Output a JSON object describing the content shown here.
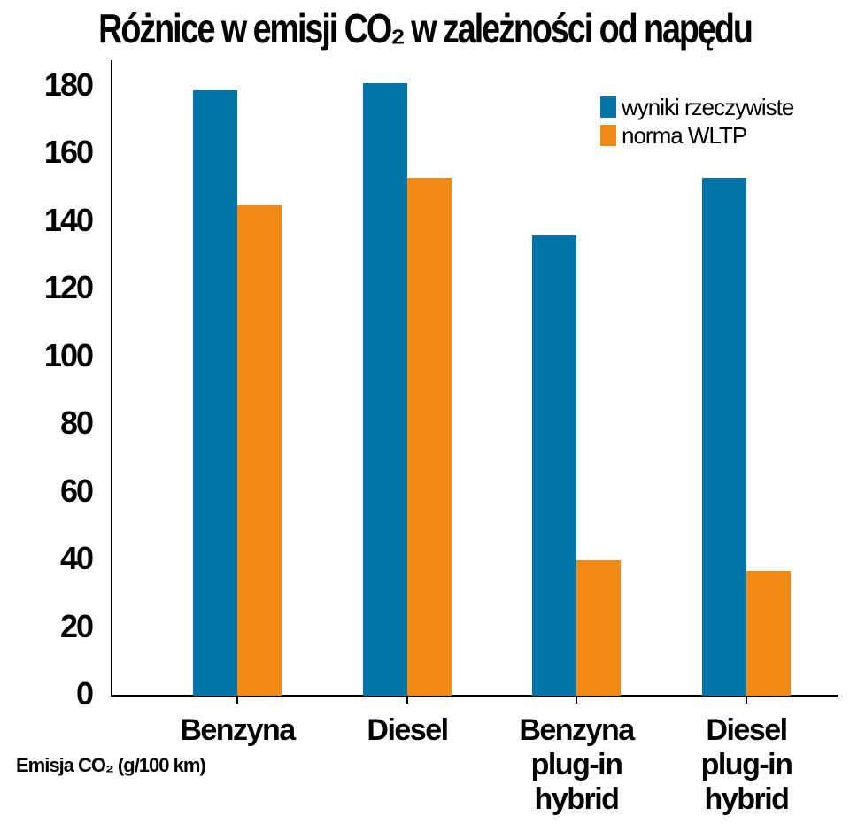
{
  "chart_data": {
    "type": "bar",
    "title": "Różnice w emisji CO₂ w zależności od napędu",
    "xlabel": "",
    "ylabel": "Emisja CO₂ (g/100 km)",
    "ylim": [
      0,
      180
    ],
    "yticks": [
      0,
      20,
      40,
      60,
      80,
      100,
      120,
      140,
      160,
      180
    ],
    "grid": false,
    "legend_position": "top-right",
    "categories": [
      "Benzyna",
      "Diesel",
      "Benzyna\nplug-in\nhybrid",
      "Diesel\nplug-in\nhybrid"
    ],
    "series": [
      {
        "name": "wyniki rzeczywiste",
        "color": "#0073a8",
        "values": [
          179,
          181,
          136,
          153
        ]
      },
      {
        "name": "norma WLTP",
        "color": "#f08a12",
        "values": [
          145,
          153,
          40,
          37
        ]
      }
    ]
  },
  "ui": {
    "title": "Różnice w emisji CO₂ w zależności od napędu",
    "unit_label": "Emisja CO₂ (g/100 km)",
    "legend": [
      "wyniki rzeczywiste",
      "norma WLTP"
    ]
  }
}
